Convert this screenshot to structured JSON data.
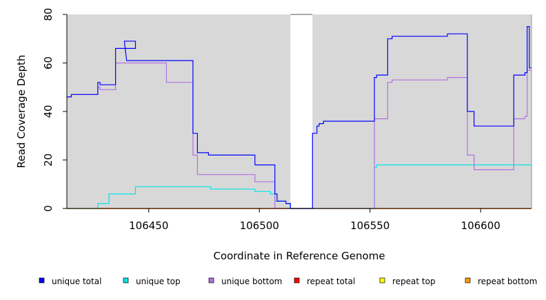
{
  "chart_data": {
    "type": "line",
    "xlabel": "Coordinate in Reference Genome",
    "ylabel": "Read Coverage Depth",
    "xlim": [
      106413,
      106623
    ],
    "ylim": [
      0,
      80
    ],
    "x_ticks": [
      106450,
      106500,
      106550,
      106600
    ],
    "y_ticks": [
      0,
      20,
      40,
      60,
      80
    ],
    "background_color": "#d8d8d8",
    "gap_region": [
      106514,
      106524
    ],
    "legend_position": "bottom",
    "series": [
      {
        "name": "unique total",
        "color": "#0000ff",
        "points": [
          [
            106413,
            46
          ],
          [
            106415,
            46
          ],
          [
            106415,
            47
          ],
          [
            106427,
            47
          ],
          [
            106427,
            52
          ],
          [
            106428,
            52
          ],
          [
            106428,
            51
          ],
          [
            106435,
            51
          ],
          [
            106435,
            66
          ],
          [
            106444,
            66
          ],
          [
            106444,
            69
          ],
          [
            106440,
            69
          ],
          [
            106439,
            69
          ],
          [
            106440,
            61
          ],
          [
            106441,
            61
          ],
          [
            106470,
            61
          ],
          [
            106470,
            31
          ],
          [
            106472,
            31
          ],
          [
            106472,
            23
          ],
          [
            106477,
            23
          ],
          [
            106477,
            22
          ],
          [
            106498,
            22
          ],
          [
            106498,
            18
          ],
          [
            106507,
            18
          ],
          [
            106507,
            6
          ],
          [
            106508,
            6
          ],
          [
            106508,
            3
          ],
          [
            106512,
            3
          ],
          [
            106512,
            2
          ],
          [
            106513,
            2
          ],
          [
            106514,
            2
          ],
          [
            106514,
            0
          ],
          [
            106524,
            0
          ],
          [
            106524,
            31
          ],
          [
            106526,
            31
          ],
          [
            106526,
            34
          ],
          [
            106527,
            34
          ],
          [
            106527,
            35
          ],
          [
            106529,
            35
          ],
          [
            106529,
            36
          ],
          [
            106552,
            36
          ],
          [
            106552,
            54
          ],
          [
            106553,
            54
          ],
          [
            106553,
            55
          ],
          [
            106558,
            55
          ],
          [
            106558,
            70
          ],
          [
            106560,
            70
          ],
          [
            106560,
            71
          ],
          [
            106585,
            71
          ],
          [
            106585,
            72
          ],
          [
            106594,
            72
          ],
          [
            106594,
            40
          ],
          [
            106597,
            40
          ],
          [
            106597,
            34
          ],
          [
            106615,
            34
          ],
          [
            106615,
            55
          ],
          [
            106620,
            55
          ],
          [
            106620,
            56
          ],
          [
            106621,
            56
          ],
          [
            106621,
            75
          ],
          [
            106622,
            75
          ],
          [
            106622,
            58
          ],
          [
            106623,
            58
          ]
        ]
      },
      {
        "name": "unique top",
        "color": "#00e5e5",
        "points": [
          [
            106413,
            0
          ],
          [
            106427,
            0
          ],
          [
            106427,
            2
          ],
          [
            106432,
            2
          ],
          [
            106432,
            6
          ],
          [
            106444,
            6
          ],
          [
            106444,
            9
          ],
          [
            106478,
            9
          ],
          [
            106478,
            8
          ],
          [
            106498,
            8
          ],
          [
            106498,
            7
          ],
          [
            106505,
            7
          ],
          [
            106505,
            6
          ],
          [
            106507,
            6
          ],
          [
            106507,
            3
          ],
          [
            106512,
            3
          ],
          [
            106512,
            2
          ],
          [
            106513,
            2
          ],
          [
            106514,
            2
          ],
          [
            106514,
            0
          ],
          [
            106552,
            0
          ],
          [
            106552,
            17
          ],
          [
            106553,
            17
          ],
          [
            106553,
            18
          ],
          [
            106623,
            18
          ],
          [
            106623,
            0
          ]
        ]
      },
      {
        "name": "unique bottom",
        "color": "#b070e0",
        "points": [
          [
            106413,
            46
          ],
          [
            106415,
            46
          ],
          [
            106415,
            47
          ],
          [
            106427,
            47
          ],
          [
            106427,
            50
          ],
          [
            106428,
            50
          ],
          [
            106428,
            49
          ],
          [
            106435,
            49
          ],
          [
            106435,
            60
          ],
          [
            106458,
            60
          ],
          [
            106458,
            52
          ],
          [
            106470,
            52
          ],
          [
            106470,
            22
          ],
          [
            106472,
            22
          ],
          [
            106472,
            14
          ],
          [
            106498,
            14
          ],
          [
            106498,
            11
          ],
          [
            106507,
            11
          ],
          [
            106507,
            0
          ],
          [
            106552,
            0
          ],
          [
            106552,
            37
          ],
          [
            106558,
            37
          ],
          [
            106558,
            52
          ],
          [
            106560,
            52
          ],
          [
            106560,
            53
          ],
          [
            106585,
            53
          ],
          [
            106585,
            54
          ],
          [
            106594,
            54
          ],
          [
            106594,
            22
          ],
          [
            106597,
            22
          ],
          [
            106597,
            16
          ],
          [
            106615,
            16
          ],
          [
            106615,
            37
          ],
          [
            106620,
            37
          ],
          [
            106620,
            38
          ],
          [
            106621,
            38
          ],
          [
            106621,
            57
          ],
          [
            106623,
            57
          ]
        ]
      },
      {
        "name": "repeat total",
        "color": "#ff0000",
        "points": [
          [
            106413,
            0
          ],
          [
            106623,
            0
          ]
        ]
      },
      {
        "name": "repeat top",
        "color": "#ffff00",
        "points": [
          [
            106413,
            0
          ],
          [
            106623,
            0
          ]
        ]
      },
      {
        "name": "repeat bottom",
        "color": "#ff9900",
        "points": [
          [
            106413,
            0
          ],
          [
            106623,
            0
          ]
        ]
      }
    ]
  }
}
